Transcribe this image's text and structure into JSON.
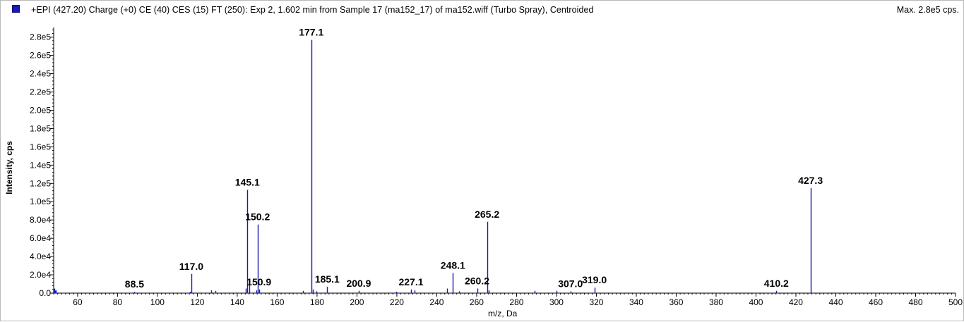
{
  "header": {
    "title": "+EPI (427.20) Charge (+0) CE (40) CES (15) FT (250): Exp 2, 1.602 min from Sample 17 (ma152_17) of ma152.wiff (Turbo Spray), Centroided",
    "max_label": "Max. 2.8e5 cps."
  },
  "colors": {
    "series": "#1a1ab4",
    "axis": "#000000"
  },
  "chart_data": {
    "type": "bar",
    "xlabel": "m/z, Da",
    "ylabel": "Intensity, cps",
    "xlim": [
      48,
      500
    ],
    "ylim": [
      0,
      289000
    ],
    "x_ticks": [
      60,
      80,
      100,
      120,
      140,
      160,
      180,
      200,
      220,
      240,
      260,
      280,
      300,
      320,
      340,
      360,
      380,
      400,
      420,
      440,
      460,
      480,
      500
    ],
    "x_tick_labels": [
      "60",
      "80",
      "100",
      "120",
      "140",
      "160",
      "180",
      "200",
      "220",
      "240",
      "260",
      "280",
      "300",
      "320",
      "340",
      "360",
      "380",
      "400",
      "420",
      "440",
      "460",
      "480",
      "500"
    ],
    "y_ticks": [
      0,
      20000,
      40000,
      60000,
      80000,
      100000,
      120000,
      140000,
      160000,
      180000,
      200000,
      220000,
      240000,
      260000,
      280000
    ],
    "y_tick_labels": [
      "0.0",
      "2.0e4",
      "4.0e4",
      "6.0e4",
      "8.0e4",
      "1.0e5",
      "1.2e5",
      "1.4e5",
      "1.6e5",
      "1.8e5",
      "2.0e5",
      "2.2e5",
      "2.4e5",
      "2.6e5",
      "2.8e5"
    ],
    "peaks": [
      {
        "x": 48.5,
        "y": 5000
      },
      {
        "x": 49.0,
        "y": 3000
      },
      {
        "x": 88.5,
        "y": 1500
      },
      {
        "x": 117.0,
        "y": 21000
      },
      {
        "x": 116.2,
        "y": 1500
      },
      {
        "x": 127.0,
        "y": 3000
      },
      {
        "x": 129.0,
        "y": 2500
      },
      {
        "x": 144.2,
        "y": 5000
      },
      {
        "x": 145.1,
        "y": 113000
      },
      {
        "x": 146.0,
        "y": 14000
      },
      {
        "x": 149.5,
        "y": 3000
      },
      {
        "x": 150.2,
        "y": 75000
      },
      {
        "x": 150.9,
        "y": 4000
      },
      {
        "x": 173.0,
        "y": 2500
      },
      {
        "x": 177.1,
        "y": 277000
      },
      {
        "x": 178.0,
        "y": 4000
      },
      {
        "x": 179.5,
        "y": 2000
      },
      {
        "x": 185.1,
        "y": 7000
      },
      {
        "x": 200.9,
        "y": 2500
      },
      {
        "x": 219.5,
        "y": 1500
      },
      {
        "x": 227.1,
        "y": 4000
      },
      {
        "x": 229.0,
        "y": 3000
      },
      {
        "x": 245.0,
        "y": 5000
      },
      {
        "x": 248.1,
        "y": 22000
      },
      {
        "x": 251.0,
        "y": 2000
      },
      {
        "x": 260.2,
        "y": 5000
      },
      {
        "x": 265.2,
        "y": 78000
      },
      {
        "x": 266.0,
        "y": 3000
      },
      {
        "x": 289.0,
        "y": 2500
      },
      {
        "x": 300.0,
        "y": 2500
      },
      {
        "x": 307.0,
        "y": 2000
      },
      {
        "x": 319.0,
        "y": 6000
      },
      {
        "x": 410.2,
        "y": 2500
      },
      {
        "x": 427.3,
        "y": 115000
      }
    ],
    "peak_labels": [
      {
        "text": "88.5",
        "x": 88.5,
        "y": 1500
      },
      {
        "text": "117.0",
        "x": 117.0,
        "y": 21000
      },
      {
        "text": "145.1",
        "x": 145.1,
        "y": 113000
      },
      {
        "text": "150.2",
        "x": 150.2,
        "y": 75000
      },
      {
        "text": "150.9",
        "x": 150.9,
        "y": 4000
      },
      {
        "text": "177.1",
        "x": 177.1,
        "y": 277000
      },
      {
        "text": "185.1",
        "x": 185.1,
        "y": 7000
      },
      {
        "text": "200.9",
        "x": 200.9,
        "y": 2500
      },
      {
        "text": "227.1",
        "x": 227.1,
        "y": 4000
      },
      {
        "text": "248.1",
        "x": 248.1,
        "y": 22000
      },
      {
        "text": "260.2",
        "x": 260.2,
        "y": 5000
      },
      {
        "text": "265.2",
        "x": 265.2,
        "y": 78000
      },
      {
        "text": "307.0",
        "x": 307.0,
        "y": 2000
      },
      {
        "text": "319.0",
        "x": 319.0,
        "y": 6000
      },
      {
        "text": "410.2",
        "x": 410.2,
        "y": 2500
      },
      {
        "text": "427.3",
        "x": 427.3,
        "y": 115000
      }
    ]
  }
}
